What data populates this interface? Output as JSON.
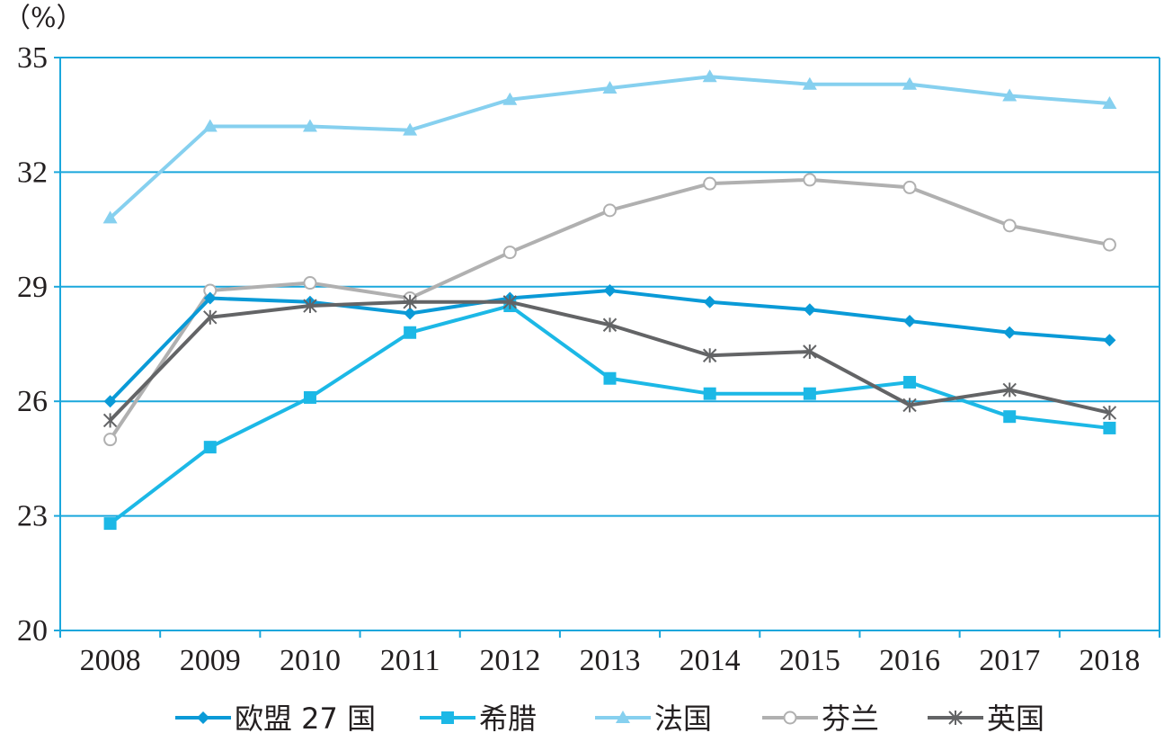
{
  "chart_data": {
    "type": "line",
    "unit_label": "（%）",
    "x": [
      "2008",
      "2009",
      "2010",
      "2011",
      "2012",
      "2013",
      "2014",
      "2015",
      "2016",
      "2017",
      "2018"
    ],
    "ylim": [
      20,
      35
    ],
    "yticks": [
      "20",
      "23",
      "26",
      "29",
      "32",
      "35"
    ],
    "ytick_values": [
      20,
      23,
      26,
      29,
      32,
      35
    ],
    "grid": true,
    "legend_position": "bottom",
    "series": [
      {
        "name": "欧盟 27 国",
        "marker": "diamond",
        "color": "#0a9ad7",
        "values": [
          26.0,
          28.7,
          28.6,
          28.3,
          28.7,
          28.9,
          28.6,
          28.4,
          28.1,
          27.8,
          27.6
        ]
      },
      {
        "name": "希腊",
        "marker": "square",
        "color": "#1cb8e6",
        "values": [
          22.8,
          24.8,
          26.1,
          27.8,
          28.5,
          26.6,
          26.2,
          26.2,
          26.5,
          25.6,
          25.3
        ]
      },
      {
        "name": "法国",
        "marker": "triangle",
        "color": "#86d0ef",
        "values": [
          30.8,
          33.2,
          33.2,
          33.1,
          33.9,
          34.2,
          34.5,
          34.3,
          34.3,
          34.0,
          33.8
        ]
      },
      {
        "name": "芬兰",
        "marker": "circle",
        "color": "#b0b0b0",
        "values": [
          25.0,
          28.9,
          29.1,
          28.7,
          29.9,
          31.0,
          31.7,
          31.8,
          31.6,
          30.6,
          30.1
        ]
      },
      {
        "name": "英国",
        "marker": "star",
        "color": "#636466",
        "values": [
          25.5,
          28.2,
          28.5,
          28.6,
          28.6,
          28.0,
          27.2,
          27.3,
          25.9,
          26.3,
          25.7
        ]
      }
    ]
  }
}
